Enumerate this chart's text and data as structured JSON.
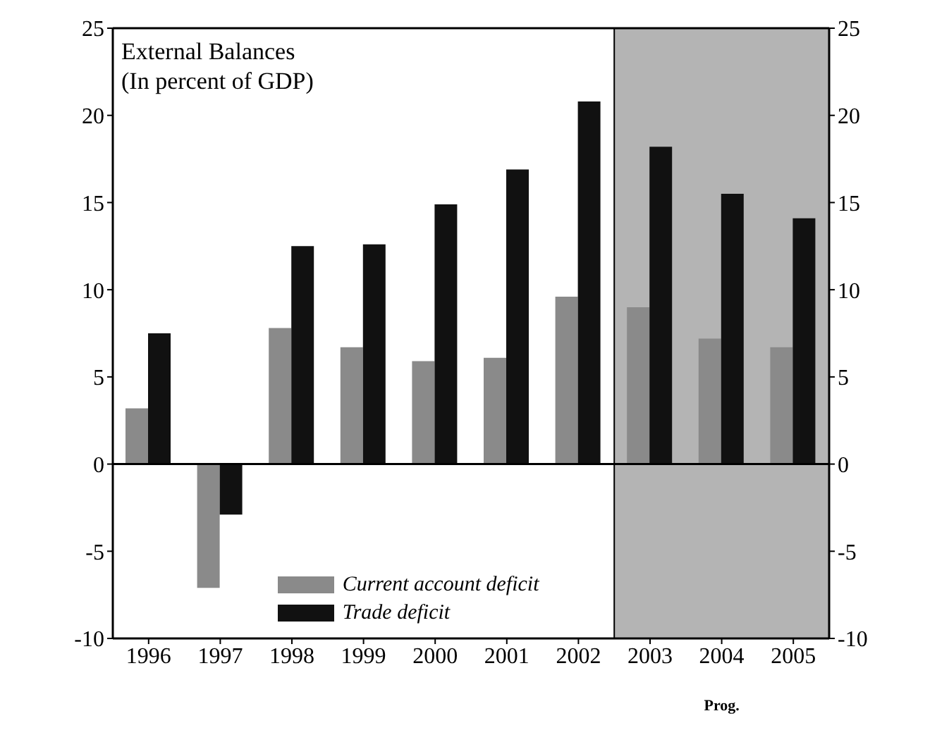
{
  "chart_data": {
    "type": "bar",
    "title": "External Balances",
    "subtitle": "(In percent of GDP)",
    "categories": [
      "1996",
      "1997",
      "1998",
      "1999",
      "2000",
      "2001",
      "2002",
      "2003",
      "2004",
      "2005"
    ],
    "series": [
      {
        "name": "Current account deficit",
        "color": "#8a8a8a",
        "values": [
          3.2,
          -7.1,
          7.8,
          6.7,
          5.9,
          6.1,
          9.6,
          9.0,
          7.2,
          6.7
        ]
      },
      {
        "name": "Trade deficit",
        "color": "#111111",
        "values": [
          7.5,
          -2.9,
          12.5,
          12.6,
          14.9,
          16.9,
          20.8,
          18.2,
          15.5,
          14.1
        ]
      }
    ],
    "ylim": [
      -10,
      25
    ],
    "yticks": [
      -10,
      -5,
      0,
      5,
      10,
      15,
      20,
      25
    ],
    "y2lim": [
      -10,
      25
    ],
    "y2ticks": [
      -10,
      -5,
      0,
      5,
      10,
      15,
      20,
      25
    ],
    "bands": [
      {
        "axis": "x",
        "from": "2003",
        "to": "2005",
        "color": "#b4b4b4"
      }
    ],
    "ref_lines": [
      {
        "axis": "y",
        "value": 0,
        "color": "#000000"
      }
    ],
    "annotations": [
      "Prog."
    ],
    "legend": "bottom"
  }
}
